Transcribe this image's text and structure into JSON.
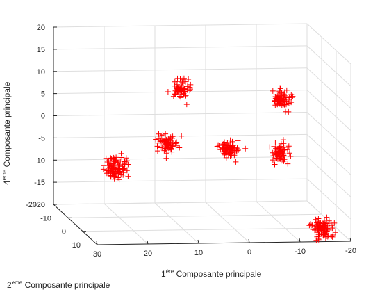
{
  "chart_data": {
    "type": "scatter",
    "projection": "3d",
    "grid": true,
    "marker": "+",
    "marker_color": "#ff0000",
    "xlabel": {
      "prefix": "1",
      "sup": "ère",
      "text": " Composante principale"
    },
    "ylabel": {
      "prefix": "2",
      "sup": "eme",
      "text": " Composante principale"
    },
    "zlabel": {
      "prefix": "4",
      "sup": "eme",
      "text": " Composante principale"
    },
    "xlim": [
      -20,
      30
    ],
    "ylim": [
      -20,
      10
    ],
    "zlim": [
      -20,
      20
    ],
    "xticks": [
      "30",
      "20",
      "10",
      "0",
      "-10",
      "-20"
    ],
    "yticks": [
      "-20",
      "-10",
      "0",
      "10"
    ],
    "zticks": [
      "20",
      "15",
      "10",
      "5",
      "0",
      "-5",
      "-10",
      "-15",
      "-20"
    ],
    "clusters": [
      {
        "x": 26,
        "y": 9,
        "z": -3,
        "spread": [
          1.2,
          1.0,
          1.3
        ],
        "count": 110
      },
      {
        "x": 15,
        "y": 5,
        "z": 1,
        "spread": [
          1.0,
          0.8,
          0.9
        ],
        "count": 70
      },
      {
        "x": 7,
        "y": -12,
        "z": 8,
        "spread": [
          0.8,
          0.8,
          1.1
        ],
        "count": 70
      },
      {
        "x": 1,
        "y": 0,
        "z": -2,
        "spread": [
          1.0,
          0.8,
          0.9
        ],
        "count": 80
      },
      {
        "x": -10,
        "y": -3,
        "z": -4,
        "spread": [
          0.8,
          0.7,
          1.0
        ],
        "count": 70
      },
      {
        "x": -15,
        "y": -20,
        "z": 3,
        "spread": [
          1.0,
          0.9,
          1.0
        ],
        "count": 80
      },
      {
        "x": -15,
        "y": 8,
        "z": -18,
        "spread": [
          1.0,
          0.9,
          1.1
        ],
        "count": 100
      }
    ]
  }
}
